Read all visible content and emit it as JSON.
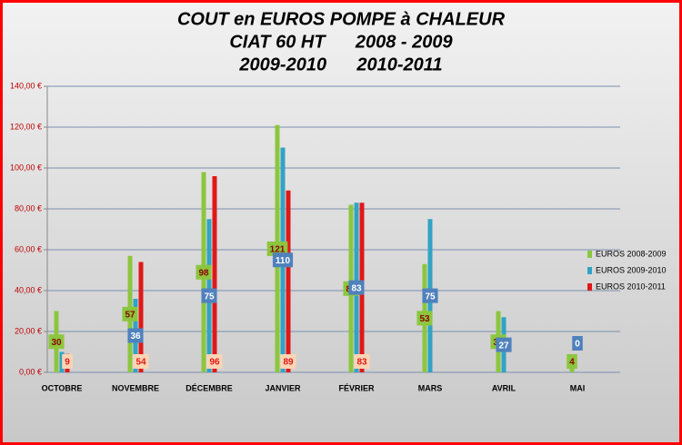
{
  "chart_data": {
    "type": "bar",
    "title": [
      "COUT en EUROS POMPE à CHALEUR",
      "CIAT 60 HT      2008 - 2009",
      "2009-2010      2010-2011"
    ],
    "categories": [
      "OCTOBRE",
      "NOVEMBRE",
      "DÉCEMBRE",
      "JANVIER",
      "FÉVRIER",
      "MARS",
      "AVRIL",
      "MAI"
    ],
    "series": [
      {
        "name": "EUROS 2008-2009",
        "color": "#8cc63f",
        "values": [
          30,
          57,
          98,
          121,
          82,
          53,
          30,
          4
        ]
      },
      {
        "name": "EUROS 2009-2010",
        "color": "#31a3c4",
        "values": [
          10,
          36,
          75,
          110,
          83,
          75,
          27,
          0
        ],
        "value_labels": [
          null,
          "36",
          "75",
          "110",
          "83",
          "75",
          "27",
          "0"
        ]
      },
      {
        "name": "EUROS 2010-2011",
        "color": "#e01818",
        "values": [
          9,
          54,
          96,
          89,
          83,
          null,
          null,
          null
        ]
      }
    ],
    "ylim": [
      0,
      140
    ],
    "yticks": [
      {
        "value": 0,
        "label": "0,00 €"
      },
      {
        "value": 20,
        "label": "20,00 €"
      },
      {
        "value": 40,
        "label": "40,00 €"
      },
      {
        "value": 60,
        "label": "60,00 €"
      },
      {
        "value": 80,
        "label": "80,00 €"
      },
      {
        "value": 100,
        "label": "100,00 €"
      },
      {
        "value": 120,
        "label": "120,00 €"
      },
      {
        "value": 140,
        "label": "140,00 €"
      }
    ],
    "grid": true,
    "legend": "right"
  }
}
